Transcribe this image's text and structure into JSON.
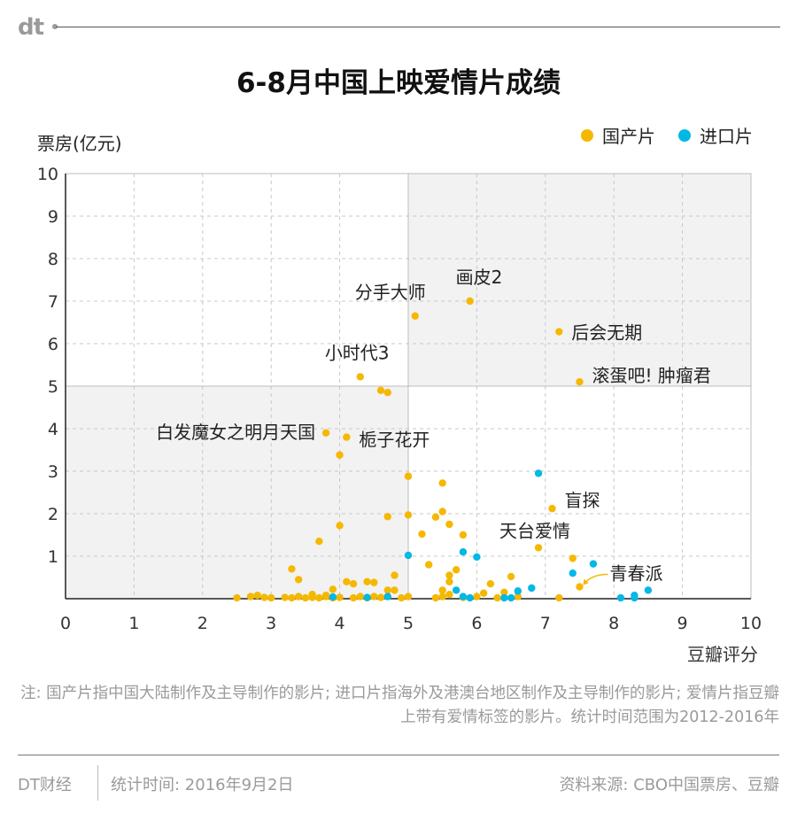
{
  "brand": {
    "logo": "dt"
  },
  "header": {
    "title": "6-8月中国上映爱情片成绩"
  },
  "note": "注: 国产片指中国大陆制作及主导制作的影片; 进口片指海外及港澳台地区制作及主导制作的影片; 爱情片指豆瓣上带有爱情标签的影片。统计时间范围为2012-2016年",
  "footer": {
    "source_brand": "DT财经",
    "stat_time": "统计时间: 2016年9月2日",
    "data_source": "资料来源: CBO中国票房、豆瓣"
  },
  "chart_data": {
    "type": "scatter",
    "title": "6-8月中国上映爱情片成绩",
    "xlabel": "豆瓣评分",
    "ylabel": "票房(亿元)",
    "xlim": [
      0,
      10
    ],
    "ylim": [
      0,
      10
    ],
    "xticks": [
      "0",
      "1",
      "2",
      "3",
      "4",
      "5",
      "6",
      "7",
      "8",
      "9",
      "10"
    ],
    "yticks": [
      "10",
      "9",
      "8",
      "7",
      "6",
      "5",
      "4",
      "3",
      "2",
      "1"
    ],
    "grid": true,
    "quadrant_split": {
      "x": 5,
      "y": 5
    },
    "legend_position": "top-right",
    "colors": {
      "domestic": "#f5b800",
      "imported": "#00b8e6",
      "shade": "#f2f2f2"
    },
    "series": [
      {
        "name": "国产片",
        "color": "#f5b800",
        "points": [
          [
            5.9,
            7.0
          ],
          [
            5.1,
            6.65
          ],
          [
            7.2,
            6.28
          ],
          [
            7.5,
            5.1
          ],
          [
            4.3,
            5.22
          ],
          [
            4.6,
            4.9
          ],
          [
            4.7,
            4.85
          ],
          [
            3.8,
            3.9
          ],
          [
            4.1,
            3.8
          ],
          [
            4.0,
            3.38
          ],
          [
            5.0,
            2.88
          ],
          [
            5.5,
            2.72
          ],
          [
            7.1,
            2.12
          ],
          [
            5.0,
            1.97
          ],
          [
            5.5,
            2.05
          ],
          [
            4.7,
            1.93
          ],
          [
            5.4,
            1.92
          ],
          [
            5.6,
            1.75
          ],
          [
            5.8,
            1.5
          ],
          [
            5.2,
            1.52
          ],
          [
            4.0,
            1.72
          ],
          [
            3.7,
            1.35
          ],
          [
            6.9,
            1.2
          ],
          [
            7.4,
            0.95
          ],
          [
            5.3,
            0.8
          ],
          [
            5.7,
            0.68
          ],
          [
            5.6,
            0.55
          ],
          [
            3.3,
            0.7
          ],
          [
            6.5,
            0.52
          ],
          [
            5.6,
            0.4
          ],
          [
            4.8,
            0.55
          ],
          [
            7.5,
            0.28
          ],
          [
            6.2,
            0.35
          ],
          [
            3.4,
            0.45
          ],
          [
            4.1,
            0.4
          ],
          [
            4.2,
            0.35
          ],
          [
            4.4,
            0.4
          ],
          [
            4.5,
            0.38
          ],
          [
            3.9,
            0.22
          ],
          [
            4.7,
            0.2
          ],
          [
            4.8,
            0.2
          ],
          [
            5.5,
            0.2
          ],
          [
            6.1,
            0.13
          ],
          [
            6.4,
            0.15
          ],
          [
            3.6,
            0.1
          ],
          [
            3.8,
            0.08
          ],
          [
            5.6,
            0.1
          ],
          [
            6.0,
            0.05
          ],
          [
            2.5,
            0.02
          ],
          [
            2.7,
            0.05
          ],
          [
            2.8,
            0.08
          ],
          [
            2.9,
            0.03
          ],
          [
            3.0,
            0.02
          ],
          [
            3.2,
            0.03
          ],
          [
            3.3,
            0.02
          ],
          [
            3.4,
            0.05
          ],
          [
            3.5,
            0.02
          ],
          [
            3.6,
            0.03
          ],
          [
            3.7,
            0.02
          ],
          [
            3.8,
            0.05
          ],
          [
            3.9,
            0.02
          ],
          [
            4.0,
            0.03
          ],
          [
            4.2,
            0.02
          ],
          [
            4.3,
            0.05
          ],
          [
            4.4,
            0.02
          ],
          [
            4.6,
            0.03
          ],
          [
            4.9,
            0.02
          ],
          [
            5.0,
            0.05
          ],
          [
            5.4,
            0.02
          ],
          [
            5.5,
            0.05
          ],
          [
            5.8,
            0.03
          ],
          [
            6.3,
            0.02
          ],
          [
            6.6,
            0.05
          ],
          [
            7.2,
            0.02
          ],
          [
            4.5,
            0.05
          ]
        ]
      },
      {
        "name": "进口片",
        "color": "#00b8e6",
        "points": [
          [
            6.9,
            2.95
          ],
          [
            5.8,
            1.1
          ],
          [
            6.0,
            0.98
          ],
          [
            5.0,
            1.02
          ],
          [
            7.7,
            0.82
          ],
          [
            7.4,
            0.6
          ],
          [
            6.8,
            0.25
          ],
          [
            8.5,
            0.2
          ],
          [
            6.6,
            0.18
          ],
          [
            5.7,
            0.2
          ],
          [
            8.3,
            0.08
          ],
          [
            5.8,
            0.05
          ],
          [
            4.7,
            0.05
          ],
          [
            3.9,
            0.04
          ],
          [
            4.4,
            0.03
          ],
          [
            5.9,
            0.02
          ],
          [
            6.5,
            0.02
          ],
          [
            8.1,
            0.02
          ],
          [
            8.3,
            0.02
          ],
          [
            6.4,
            0.02
          ]
        ]
      }
    ],
    "annotations": [
      {
        "text": "画皮2",
        "x": 5.9,
        "y": 7.0
      },
      {
        "text": "分手大师",
        "x": 5.1,
        "y": 6.65
      },
      {
        "text": "后会无期",
        "x": 7.2,
        "y": 6.28
      },
      {
        "text": "滚蛋吧! 肿瘤君",
        "x": 7.5,
        "y": 5.1
      },
      {
        "text": "小时代3",
        "x": 4.3,
        "y": 5.22
      },
      {
        "text": "白发魔女之明月天国",
        "x": 3.8,
        "y": 3.9
      },
      {
        "text": "栀子花开",
        "x": 4.1,
        "y": 3.8
      },
      {
        "text": "盲探",
        "x": 7.1,
        "y": 2.12
      },
      {
        "text": "天台爱情",
        "x": 6.9,
        "y": 1.2
      },
      {
        "text": "青春派",
        "x": 7.5,
        "y": 0.28
      }
    ]
  }
}
